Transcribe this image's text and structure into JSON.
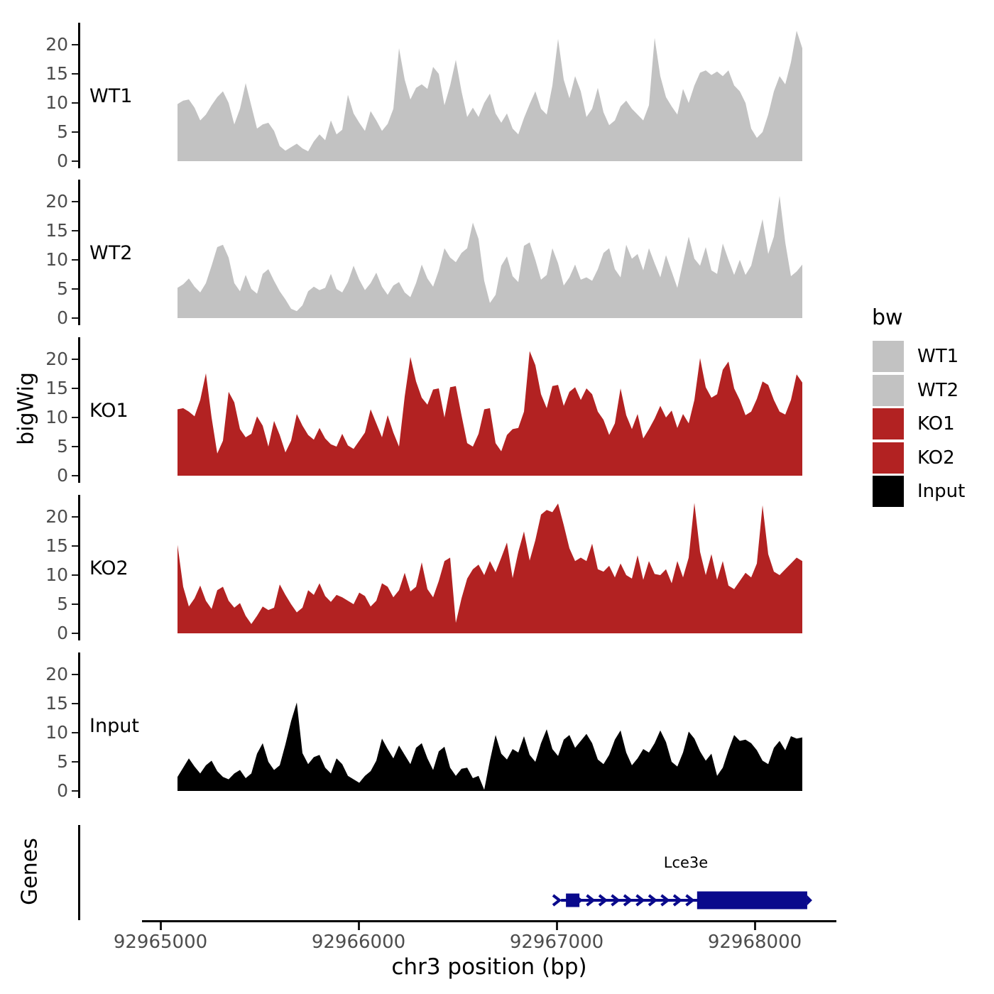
{
  "figure": {
    "background": "#ffffff",
    "y_axis_title": "bigWig",
    "genes_axis_title": "Genes",
    "x_axis_title": "chr3 position (bp)"
  },
  "legend": {
    "title": "bw",
    "items": [
      {
        "label": "WT1",
        "color": "#C2C2C2"
      },
      {
        "label": "WT2",
        "color": "#C2C2C2"
      },
      {
        "label": "KO1",
        "color": "#B22222"
      },
      {
        "label": "KO2",
        "color": "#B22222"
      },
      {
        "label": "Input",
        "color": "#000000"
      }
    ]
  },
  "chart_data": {
    "type": "area",
    "title": "",
    "xlabel": "chr3 position (bp)",
    "ylabel": "bigWig",
    "x_axis": {
      "ticks": [
        92965000,
        92966000,
        92967000,
        92968000
      ],
      "range": [
        92964900,
        92968420
      ]
    },
    "y_axis": {
      "ticks": [
        0,
        5,
        10,
        15,
        20
      ],
      "ylim_per_track": [
        0,
        23.8
      ]
    },
    "grid": false,
    "legend_position": "right",
    "signal_x_start": 92965080,
    "signal_x_end": 92968240,
    "tracks": [
      {
        "name": "WT1",
        "color": "#C2C2C2",
        "values": [
          9.8,
          10.4,
          10.6,
          9.2,
          7.0,
          8.0,
          9.6,
          11.0,
          12.0,
          10.0,
          6.3,
          9.0,
          13.4,
          9.5,
          5.6,
          6.3,
          6.6,
          5.2,
          2.6,
          1.8,
          2.4,
          3.0,
          2.2,
          1.7,
          3.4,
          4.6,
          3.6,
          7.0,
          4.6,
          5.4,
          11.4,
          8.2,
          6.6,
          5.2,
          8.6,
          7.0,
          5.2,
          6.4,
          9.0,
          19.4,
          14.0,
          10.6,
          12.6,
          13.2,
          12.4,
          16.2,
          15.0,
          9.6,
          13.0,
          17.4,
          12.0,
          7.6,
          9.2,
          7.6,
          10.0,
          11.6,
          8.2,
          6.6,
          8.2,
          5.6,
          4.6,
          7.4,
          9.8,
          12.0,
          9.0,
          8.0,
          13.0,
          21.0,
          14.0,
          10.8,
          14.6,
          12.0,
          7.6,
          9.0,
          12.6,
          8.4,
          6.2,
          7.0,
          9.4,
          10.4,
          9.0,
          8.0,
          7.0,
          9.6,
          21.2,
          14.6,
          11.0,
          9.4,
          8.0,
          12.4,
          10.0,
          13.0,
          15.2,
          15.6,
          14.8,
          15.4,
          14.6,
          15.6,
          13.0,
          12.0,
          10.0,
          5.6,
          4.0,
          5.0,
          8.0,
          12.0,
          14.6,
          13.2,
          17.0,
          22.4,
          19.4
        ]
      },
      {
        "name": "WT2",
        "color": "#C2C2C2",
        "values": [
          5.2,
          5.8,
          6.8,
          5.4,
          4.4,
          6.0,
          9.0,
          12.2,
          12.6,
          10.4,
          6.0,
          4.6,
          7.4,
          5.0,
          4.2,
          7.6,
          8.4,
          6.4,
          4.6,
          3.2,
          1.6,
          1.2,
          2.2,
          4.6,
          5.4,
          4.8,
          5.2,
          7.6,
          5.0,
          4.4,
          6.2,
          9.0,
          6.6,
          4.8,
          6.0,
          7.8,
          5.4,
          4.0,
          5.6,
          6.2,
          4.4,
          3.6,
          6.0,
          9.2,
          6.8,
          5.4,
          8.2,
          12.0,
          10.4,
          9.6,
          11.2,
          12.0,
          16.4,
          13.6,
          6.4,
          2.6,
          4.0,
          9.0,
          10.6,
          7.2,
          6.2,
          12.4,
          13.0,
          10.0,
          6.6,
          7.4,
          12.0,
          9.4,
          5.6,
          7.0,
          9.2,
          6.6,
          7.0,
          6.4,
          8.4,
          11.2,
          12.0,
          8.4,
          7.0,
          12.6,
          10.2,
          11.0,
          8.2,
          12.0,
          9.4,
          7.0,
          10.8,
          8.0,
          5.2,
          9.6,
          14.0,
          10.2,
          9.0,
          12.2,
          8.2,
          7.6,
          12.8,
          10.0,
          7.4,
          10.0,
          7.4,
          9.0,
          13.0,
          17.0,
          11.0,
          14.0,
          21.0,
          13.0,
          7.2,
          8.0,
          9.2
        ]
      },
      {
        "name": "KO1",
        "color": "#B22222",
        "values": [
          11.4,
          11.6,
          11.0,
          10.2,
          13.0,
          17.6,
          10.0,
          3.8,
          6.0,
          14.4,
          12.6,
          8.0,
          6.6,
          7.2,
          10.2,
          8.6,
          5.0,
          9.4,
          7.0,
          4.0,
          6.0,
          10.6,
          8.6,
          7.0,
          6.2,
          8.2,
          6.4,
          5.4,
          5.0,
          7.2,
          5.2,
          4.6,
          6.0,
          7.4,
          11.4,
          9.0,
          6.6,
          10.4,
          7.4,
          5.0,
          13.6,
          20.4,
          16.2,
          13.4,
          12.2,
          14.8,
          15.0,
          10.0,
          15.2,
          15.4,
          10.4,
          5.6,
          5.0,
          7.2,
          11.4,
          11.6,
          5.6,
          4.2,
          7.0,
          8.0,
          8.2,
          11.0,
          21.4,
          19.0,
          14.0,
          11.6,
          15.4,
          15.6,
          12.0,
          14.4,
          15.2,
          13.0,
          15.0,
          14.0,
          11.0,
          9.6,
          7.0,
          9.0,
          15.0,
          10.4,
          8.0,
          10.6,
          6.4,
          8.0,
          9.8,
          12.0,
          10.0,
          11.2,
          8.2,
          10.6,
          9.0,
          13.0,
          20.2,
          15.2,
          13.4,
          14.0,
          18.2,
          19.6,
          15.0,
          13.0,
          10.4,
          11.0,
          13.2,
          16.2,
          15.6,
          13.0,
          11.0,
          10.5,
          13.0,
          17.4,
          16.0
        ]
      },
      {
        "name": "KO2",
        "color": "#B22222",
        "values": [
          15.2,
          8.0,
          4.6,
          6.0,
          8.2,
          5.6,
          4.2,
          7.4,
          8.0,
          5.6,
          4.4,
          5.2,
          3.0,
          1.6,
          3.0,
          4.6,
          4.0,
          4.4,
          8.4,
          6.6,
          5.0,
          3.6,
          4.4,
          7.4,
          6.6,
          8.6,
          6.4,
          5.4,
          6.6,
          6.2,
          5.6,
          5.0,
          7.0,
          6.4,
          4.6,
          5.6,
          8.6,
          8.0,
          6.2,
          7.4,
          10.4,
          7.2,
          8.0,
          12.2,
          7.6,
          6.2,
          9.0,
          12.4,
          13.0,
          1.8,
          6.0,
          9.4,
          11.0,
          11.8,
          10.0,
          12.4,
          10.5,
          13.0,
          15.6,
          9.5,
          14.0,
          17.5,
          12.5,
          16.0,
          20.4,
          21.2,
          20.8,
          22.3,
          18.6,
          14.6,
          12.4,
          13.0,
          12.4,
          15.4,
          11.0,
          10.6,
          11.6,
          9.6,
          12.0,
          10.0,
          9.4,
          13.4,
          9.2,
          12.4,
          10.2,
          10.0,
          11.0,
          8.6,
          12.4,
          9.6,
          13.0,
          22.4,
          14.0,
          10.0,
          13.6,
          9.2,
          12.4,
          8.2,
          7.6,
          9.0,
          10.4,
          9.6,
          12.0,
          22.0,
          13.6,
          10.6,
          10.0,
          11.0,
          12.0,
          13.0,
          12.4
        ]
      },
      {
        "name": "Input",
        "color": "#000000",
        "values": [
          2.4,
          4.0,
          5.6,
          4.2,
          3.0,
          4.4,
          5.2,
          3.4,
          2.4,
          2.0,
          3.0,
          3.6,
          2.2,
          3.0,
          6.4,
          8.2,
          5.0,
          3.6,
          4.4,
          8.0,
          12.0,
          15.2,
          6.5,
          4.6,
          5.8,
          6.2,
          4.0,
          3.0,
          5.6,
          4.6,
          2.6,
          2.0,
          1.4,
          2.6,
          3.4,
          5.2,
          9.0,
          7.2,
          5.6,
          7.8,
          6.2,
          4.6,
          7.4,
          8.2,
          5.6,
          3.6,
          6.8,
          7.6,
          4.0,
          2.6,
          3.8,
          4.0,
          2.2,
          2.6,
          0.2,
          5.2,
          9.6,
          6.4,
          5.4,
          7.2,
          6.6,
          9.4,
          6.2,
          5.0,
          8.2,
          10.6,
          7.2,
          6.0,
          8.8,
          9.6,
          7.4,
          8.6,
          9.8,
          8.2,
          5.4,
          4.6,
          6.2,
          8.8,
          10.4,
          6.6,
          4.4,
          5.6,
          7.2,
          6.6,
          8.2,
          10.4,
          8.4,
          5.0,
          4.2,
          6.6,
          10.2,
          9.0,
          6.8,
          5.2,
          6.4,
          2.6,
          4.0,
          7.0,
          9.6,
          8.6,
          8.8,
          8.2,
          7.0,
          5.2,
          4.6,
          7.4,
          8.6,
          7.0,
          9.4,
          9.0,
          9.2
        ]
      }
    ],
    "genes_track": {
      "panel_label": "Genes",
      "gene": {
        "name": "Lce3e",
        "strand": "+",
        "color": "#0A0A8C",
        "gene_start": 92967022,
        "gene_end": 92968265,
        "exons": [
          {
            "start": 92967047,
            "end": 92967115
          },
          {
            "start": 92967709,
            "end": 92968265
          }
        ]
      }
    }
  }
}
